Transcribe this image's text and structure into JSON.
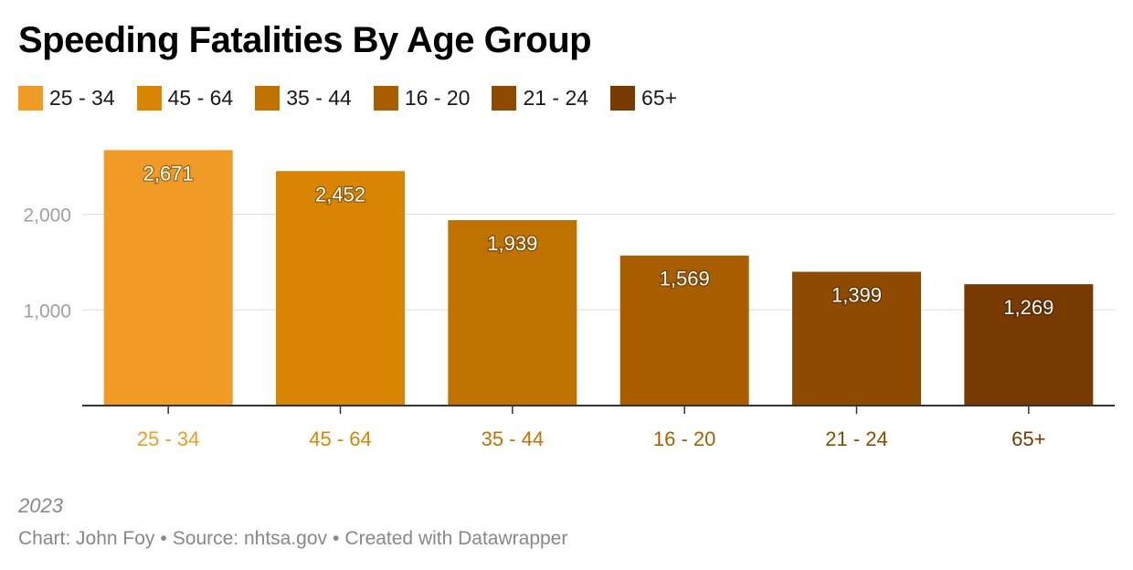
{
  "title": "Speeding Fatalities By Age Group",
  "legend": [
    {
      "label": "25 - 34",
      "color": "#ef9b26"
    },
    {
      "label": "45 - 64",
      "color": "#d88503"
    },
    {
      "label": "35 - 44",
      "color": "#c07200"
    },
    {
      "label": "16 - 20",
      "color": "#a95e00"
    },
    {
      "label": "21 - 24",
      "color": "#8e4b00"
    },
    {
      "label": "65+",
      "color": "#773a00"
    }
  ],
  "chart_data": {
    "type": "bar",
    "categories": [
      "25 - 34",
      "45 - 64",
      "35 - 44",
      "16 - 20",
      "21 - 24",
      "65+"
    ],
    "values": [
      2671,
      2452,
      1939,
      1569,
      1399,
      1269
    ],
    "value_labels": [
      "2,671",
      "2,452",
      "1,939",
      "1,569",
      "1,399",
      "1,269"
    ],
    "colors": [
      "#ef9b26",
      "#d88503",
      "#c07200",
      "#a95e00",
      "#8e4b00",
      "#773a00"
    ],
    "yticks": [
      1000,
      2000
    ],
    "ytick_labels": [
      "1,000",
      "2,000"
    ],
    "ylim": [
      0,
      2800
    ],
    "grid": true,
    "legend_position": "top-left"
  },
  "footer": {
    "note": "2023",
    "credit": "Chart: John Foy",
    "source": "Source: nhtsa.gov",
    "created": "Created with Datawrapper"
  }
}
